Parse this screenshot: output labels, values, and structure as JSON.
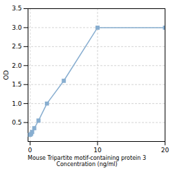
{
  "chart_data": {
    "type": "line",
    "x": [
      0,
      0.156,
      0.313,
      0.625,
      1.25,
      2.5,
      5,
      10,
      20
    ],
    "values": [
      0.175,
      0.2,
      0.25,
      0.35,
      0.55,
      1.0,
      1.6,
      3.0,
      3.0
    ],
    "xlabel": "Mouse Tripartite motif-containing protein 3\nConcentration (ng/ml)",
    "ylabel": "OD",
    "xlim": [
      -0.3,
      20
    ],
    "ylim": [
      0,
      3.5
    ],
    "xticks": [
      0,
      10,
      20
    ],
    "yticks": [
      0.5,
      {
        "value": 1.0,
        "label": "1.0"
      },
      1.5,
      {
        "value": 2.0,
        "label": "2.0"
      },
      2.5,
      {
        "value": 3.0,
        "label": "3.0"
      },
      3.5
    ],
    "color": "#88aed0",
    "marker": "square",
    "grid": true
  }
}
